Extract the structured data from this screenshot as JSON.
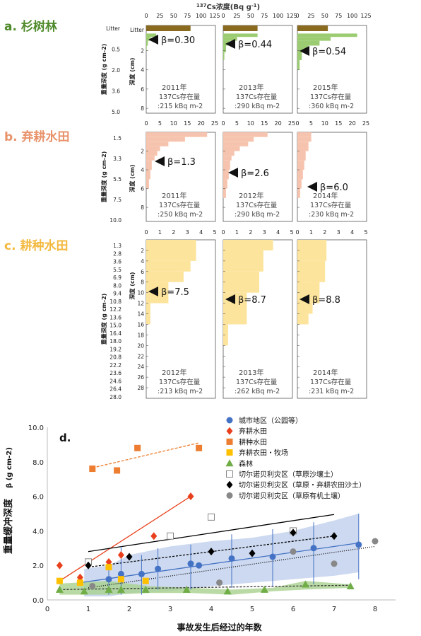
{
  "header": {
    "conc_axis_title": "137Cs浓度(Bq g-1)",
    "conc_axis_sup": "137",
    "conc_axis_main": "Cs浓度(Bq g",
    "conc_axis_exp": "-1",
    "conc_axis_close": ")"
  },
  "rows": [
    {
      "label": "a. 杉树林",
      "color": "#4f8a2b",
      "bar_color": "#9ccc72",
      "depth_axis_label": "深度 (cm)",
      "mass_axis_label": "重量深度 (g cm-2)",
      "xticks": [
        "0",
        "25",
        "50",
        "75",
        "100",
        "125"
      ],
      "xmax": 125,
      "mass_ticks": [
        "Litter",
        "0.5",
        "2.0",
        "3.6",
        "5.0"
      ],
      "panels": [
        {
          "year": "2011年",
          "inventory": "137Cs存在量",
          "inv_value": ":215 kBq m-2",
          "beta": "β=0.30",
          "depth_ticks": [
            "Litter",
            "2",
            "4",
            "6",
            "8"
          ],
          "profile": [
            {
              "d0": 0,
              "d1": 0.25,
              "v": 80,
              "litter": true
            },
            {
              "d0": 0.25,
              "d1": 0.6,
              "v": 18
            },
            {
              "d0": 0.6,
              "d1": 1.0,
              "v": 8
            },
            {
              "d0": 1.0,
              "d1": 1.5,
              "v": 3
            },
            {
              "d0": 1.5,
              "d1": 2.0,
              "v": 1
            }
          ]
        },
        {
          "year": "2013年",
          "inventory": "137Cs存在量",
          "inv_value": ":290 kBq m-2",
          "beta": "β=0.44",
          "depth_ticks": [
            "Litter",
            "2",
            "4",
            "6",
            "8"
          ],
          "profile": [
            {
              "d0": 0,
              "d1": 0.25,
              "v": 62,
              "litter": true
            },
            {
              "d0": 0.25,
              "d1": 0.6,
              "v": 62
            },
            {
              "d0": 0.6,
              "d1": 1.0,
              "v": 25
            },
            {
              "d0": 1.0,
              "d1": 1.5,
              "v": 12
            },
            {
              "d0": 1.5,
              "d1": 2.2,
              "v": 5
            },
            {
              "d0": 2.2,
              "d1": 3.0,
              "v": 2
            }
          ]
        },
        {
          "year": "2015年",
          "inventory": "137Cs存在量",
          "inv_value": ":360 kBq m-2",
          "beta": "β=0.54",
          "depth_ticks": [
            "Litter",
            "2",
            "4",
            "6",
            "8"
          ],
          "profile": [
            {
              "d0": 0,
              "d1": 0.25,
              "v": 55,
              "litter": true
            },
            {
              "d0": 0.25,
              "d1": 0.6,
              "v": 108
            },
            {
              "d0": 0.6,
              "d1": 1.0,
              "v": 60
            },
            {
              "d0": 1.0,
              "d1": 1.5,
              "v": 40
            },
            {
              "d0": 1.5,
              "d1": 2.2,
              "v": 20
            },
            {
              "d0": 2.2,
              "d1": 3.0,
              "v": 8
            },
            {
              "d0": 3.0,
              "d1": 4.0,
              "v": 4
            }
          ]
        }
      ]
    },
    {
      "label": "b. 弃耕水田",
      "color": "#e8926a",
      "bar_color": "#f6c4ae",
      "depth_axis_label": "深度 (cm)",
      "mass_axis_label": "重量深度 (g cm-2)",
      "xticks": [
        "0",
        "5",
        "10",
        "15",
        "20",
        "25"
      ],
      "xmax": 25,
      "mass_ticks": [
        "1.5",
        "3.3",
        "5.5",
        "7.5",
        "10.0"
      ],
      "panels": [
        {
          "year": "2011年",
          "inventory": "137Cs存在量",
          "inv_value": ":250 kBq m-2",
          "beta": "β=1.3",
          "depth_ticks": [
            "2",
            "4",
            "6",
            "8"
          ],
          "profile": [
            {
              "d0": 0,
              "d1": 0.5,
              "v": 22
            },
            {
              "d0": 0.5,
              "d1": 1,
              "v": 14
            },
            {
              "d0": 1,
              "d1": 1.5,
              "v": 8
            },
            {
              "d0": 1.5,
              "d1": 2,
              "v": 5
            },
            {
              "d0": 2,
              "d1": 2.5,
              "v": 4
            },
            {
              "d0": 2.5,
              "d1": 3,
              "v": 3
            },
            {
              "d0": 3,
              "d1": 4,
              "v": 2
            },
            {
              "d0": 4,
              "d1": 5,
              "v": 1.5
            },
            {
              "d0": 5,
              "d1": 6,
              "v": 1
            }
          ]
        },
        {
          "year": "2012年",
          "inventory": "137Cs存在量",
          "inv_value": ":290 kBq m-2",
          "beta": "β=2.6",
          "depth_ticks": [
            "2",
            "4",
            "6",
            "8"
          ],
          "profile": [
            {
              "d0": 0,
              "d1": 0.5,
              "v": 16
            },
            {
              "d0": 0.5,
              "d1": 1,
              "v": 11
            },
            {
              "d0": 1,
              "d1": 1.5,
              "v": 9
            },
            {
              "d0": 1.5,
              "d1": 2,
              "v": 6
            },
            {
              "d0": 2,
              "d1": 2.5,
              "v": 4
            },
            {
              "d0": 2.5,
              "d1": 3,
              "v": 3
            },
            {
              "d0": 3,
              "d1": 4,
              "v": 2.5
            },
            {
              "d0": 4,
              "d1": 5,
              "v": 2
            },
            {
              "d0": 5,
              "d1": 6,
              "v": 1.5
            },
            {
              "d0": 6,
              "d1": 7,
              "v": 1
            }
          ]
        },
        {
          "year": "2014年",
          "inventory": "137Cs存在量",
          "inv_value": ":230 kBq m-2",
          "beta": "β=6.0",
          "depth_ticks": [
            "2",
            "4",
            "6",
            "8"
          ],
          "profile": [
            {
              "d0": 0,
              "d1": 0.5,
              "v": 5
            },
            {
              "d0": 0.5,
              "d1": 1,
              "v": 5
            },
            {
              "d0": 1,
              "d1": 2,
              "v": 4
            },
            {
              "d0": 2,
              "d1": 3,
              "v": 3
            },
            {
              "d0": 3,
              "d1": 4,
              "v": 2.5
            },
            {
              "d0": 4,
              "d1": 5,
              "v": 2
            },
            {
              "d0": 5,
              "d1": 6,
              "v": 1.5
            },
            {
              "d0": 6,
              "d1": 7,
              "v": 1
            }
          ]
        }
      ]
    },
    {
      "label": "c. 耕种水田",
      "color": "#f3b93f",
      "bar_color": "#fde49c",
      "depth_axis_label": "深度 (cm)",
      "mass_axis_label": "重量深度 (g cm-2)",
      "xticks": [
        "0",
        "1",
        "2",
        "3",
        "4",
        "5"
      ],
      "xmax": 5,
      "mass_ticks": [
        "1.3",
        "2.8",
        "3.6",
        "5.5",
        "6.9",
        "8.0",
        "9.4",
        "10.8",
        "12.2",
        "13.6",
        "15.0",
        "16.4",
        "18.0",
        "19.2",
        "20.8",
        "22.2",
        "23.6",
        "24.6",
        "26.4",
        "28.0"
      ],
      "panels": [
        {
          "year": "2012年",
          "inventory": "137Cs存在量",
          "inv_value": ":213 kBq m-2",
          "beta": "β=7.5",
          "depth_ticks": [
            "2",
            "4",
            "6",
            "8",
            "10",
            "12",
            "14",
            "16",
            "18",
            "20",
            "22",
            "24",
            "26",
            "28",
            "30"
          ],
          "profile": [
            {
              "d0": 0,
              "d1": 4,
              "v": 3.6
            },
            {
              "d0": 4,
              "d1": 6,
              "v": 3.2
            },
            {
              "d0": 6,
              "d1": 8,
              "v": 2.7
            },
            {
              "d0": 8,
              "d1": 12,
              "v": 1.6
            },
            {
              "d0": 12,
              "d1": 16,
              "v": 0.3
            }
          ]
        },
        {
          "year": "2013年",
          "inventory": "137Cs存在量",
          "inv_value": ":262 kBq m-2",
          "beta": "β=8.7",
          "depth_ticks": [
            "2",
            "4",
            "6",
            "8",
            "10",
            "12",
            "14",
            "16",
            "18",
            "20",
            "22",
            "24",
            "26",
            "28",
            "30"
          ],
          "profile": [
            {
              "d0": 0,
              "d1": 2,
              "v": 3.6
            },
            {
              "d0": 2,
              "d1": 6,
              "v": 2.9
            },
            {
              "d0": 6,
              "d1": 10,
              "v": 2.6
            },
            {
              "d0": 10,
              "d1": 16,
              "v": 1.7
            },
            {
              "d0": 16,
              "d1": 20,
              "v": 0.35
            }
          ]
        },
        {
          "year": "2014年",
          "inventory": "137Cs存在量",
          "inv_value": ":231 kBq m-2",
          "beta": "β=8.8",
          "depth_ticks": [
            "2",
            "4",
            "6",
            "8",
            "10",
            "12",
            "14",
            "16",
            "18",
            "20",
            "22",
            "24",
            "26",
            "28",
            "30"
          ],
          "profile": [
            {
              "d0": 0,
              "d1": 4,
              "v": 2.1
            },
            {
              "d0": 4,
              "d1": 8,
              "v": 2.0
            },
            {
              "d0": 8,
              "d1": 12,
              "v": 1.6
            },
            {
              "d0": 12,
              "d1": 14,
              "v": 1.1
            },
            {
              "d0": 14,
              "d1": 16,
              "v": 0.8
            }
          ]
        }
      ]
    }
  ],
  "chart_data": {
    "type": "scatter",
    "panel_label": "d.",
    "xlabel": "事故发生后经过的年数",
    "ylabel": "重量缓冲深度",
    "ylabel_unit": "β (g cm-2)",
    "xlim": [
      0,
      8.5
    ],
    "ylim": [
      0,
      10
    ],
    "xticks": [
      "0",
      "1",
      "2",
      "3",
      "4",
      "5",
      "6",
      "7",
      "8"
    ],
    "yticks": [
      "0.0",
      "2.0",
      "4.0",
      "6.0",
      "8.0",
      "10.0"
    ],
    "series": [
      {
        "name": "城市地区（公园等）",
        "marker": "circle",
        "color": "#4472c4",
        "x": [
          0.8,
          1.5,
          1.8,
          2.3,
          2.7,
          3.5,
          3.7,
          4.5,
          5.5,
          6.5,
          7.6
        ],
        "y": [
          1.0,
          1.2,
          1.5,
          1.5,
          1.8,
          2.1,
          2.0,
          2.4,
          2.5,
          3.0,
          3.2
        ]
      },
      {
        "name": "弃耕水田",
        "marker": "diamond",
        "color": "#e8401c",
        "x": [
          0.3,
          0.8,
          1.5,
          1.8,
          2.6,
          3.5
        ],
        "y": [
          2.0,
          1.3,
          2.2,
          2.6,
          3.7,
          6.0
        ]
      },
      {
        "name": "耕种水田",
        "marker": "square",
        "color": "#ed7d31",
        "x": [
          1.1,
          1.7,
          2.2,
          3.7
        ],
        "y": [
          7.6,
          7.5,
          8.8,
          8.8
        ]
      },
      {
        "name": "弃耕农田・牧场",
        "marker": "square",
        "color": "#ffc000",
        "x": [
          0.3,
          0.8,
          1.5,
          1.8,
          2.4
        ],
        "y": [
          1.1,
          1.0,
          1.9,
          1.2,
          1.1
        ]
      },
      {
        "name": "森林",
        "marker": "triangle",
        "color": "#70ad47",
        "x": [
          0.3,
          0.9,
          1.5,
          1.8,
          2.4,
          3.4,
          4.4,
          5.3,
          6.3,
          7.4
        ],
        "y": [
          0.6,
          0.5,
          0.6,
          0.6,
          0.6,
          0.6,
          0.5,
          0.6,
          0.9,
          0.8
        ]
      },
      {
        "name": "切尔诺贝利灾区（草原沙壤土）",
        "marker": "square-open",
        "color": "#888888",
        "x": [
          1.0,
          3.0,
          4.0,
          6.0
        ],
        "y": [
          2.2,
          3.7,
          4.8,
          4.0
        ]
      },
      {
        "name": "切尔诺贝利灾区（草原・弃耕农田沙土）",
        "marker": "diamond",
        "color": "#000000",
        "x": [
          1.0,
          2.0,
          4.0,
          5.0,
          6.0,
          7.0
        ],
        "y": [
          2.0,
          2.5,
          2.8,
          2.7,
          3.9,
          3.7
        ]
      },
      {
        "name": "切尔诺贝利灾区（草原有机土壤）",
        "marker": "circle",
        "color": "#888888",
        "x": [
          1.1,
          4.2,
          6.0,
          7.0,
          8.0
        ],
        "y": [
          0.8,
          1.0,
          2.8,
          2.1,
          3.4
        ]
      }
    ],
    "legend_position": "top-right"
  }
}
